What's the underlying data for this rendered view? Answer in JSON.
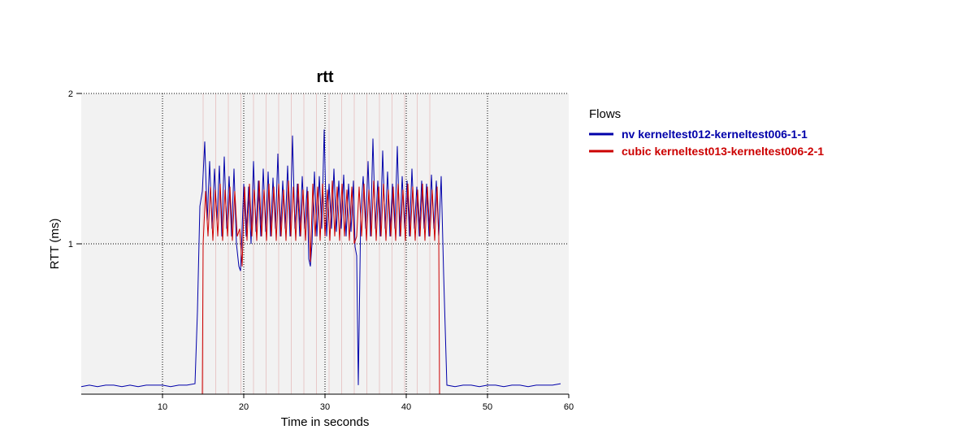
{
  "chart_data": {
    "type": "line",
    "title": "rtt",
    "xlabel": "Time in seconds",
    "ylabel": "RTT (ms)",
    "xlim": [
      0,
      60
    ],
    "ylim": [
      0,
      2
    ],
    "y_scale": "linear",
    "xticks": [
      10,
      20,
      30,
      40,
      50,
      60
    ],
    "yticks": [
      1,
      2
    ],
    "grid": true,
    "legend_title": "Flows",
    "legend_position": "right",
    "background_color": "#f2f2f2",
    "series": [
      {
        "name": "nv kerneltest012-kerneltest006-1-1",
        "color": "#0000aa",
        "x": [
          0.0,
          1.0,
          2.0,
          3.0,
          4.0,
          5.0,
          6.0,
          7.0,
          8.0,
          9.0,
          10.0,
          11.0,
          12.0,
          13.0,
          14.0,
          14.3,
          14.6,
          14.9,
          15.2,
          15.5,
          15.8,
          16.1,
          16.4,
          16.7,
          17.0,
          17.3,
          17.6,
          17.9,
          18.2,
          18.5,
          18.8,
          19.1,
          19.4,
          19.6,
          19.8,
          20.0,
          20.3,
          20.6,
          20.9,
          21.2,
          21.5,
          21.8,
          22.1,
          22.4,
          22.7,
          23.0,
          23.3,
          23.6,
          23.9,
          24.2,
          24.5,
          24.8,
          25.1,
          25.4,
          25.7,
          26.0,
          26.3,
          26.6,
          26.9,
          27.2,
          27.5,
          27.8,
          28.0,
          28.2,
          28.4,
          28.7,
          29.0,
          29.3,
          29.6,
          29.9,
          30.2,
          30.5,
          30.8,
          31.1,
          31.4,
          31.7,
          32.0,
          32.3,
          32.6,
          32.9,
          33.2,
          33.5,
          33.7,
          33.9,
          34.1,
          34.4,
          34.7,
          35.0,
          35.3,
          35.6,
          35.9,
          36.2,
          36.5,
          36.8,
          37.1,
          37.4,
          37.7,
          38.0,
          38.3,
          38.6,
          38.9,
          39.2,
          39.5,
          39.8,
          40.1,
          40.4,
          40.7,
          41.0,
          41.3,
          41.6,
          41.9,
          42.2,
          42.5,
          42.8,
          43.1,
          43.4,
          43.7,
          44.0,
          44.3,
          44.6,
          45.0,
          46.0,
          47.0,
          48.0,
          49.0,
          50.0,
          51.0,
          52.0,
          53.0,
          54.0,
          55.0,
          56.0,
          57.0,
          58.0,
          59.0
        ],
        "y": [
          0.05,
          0.06,
          0.05,
          0.06,
          0.06,
          0.05,
          0.06,
          0.05,
          0.06,
          0.06,
          0.06,
          0.05,
          0.06,
          0.06,
          0.07,
          0.55,
          1.25,
          1.35,
          1.68,
          1.15,
          1.55,
          1.1,
          1.5,
          1.15,
          1.52,
          1.05,
          1.58,
          1.1,
          1.45,
          1.05,
          1.5,
          1.0,
          0.85,
          0.82,
          1.1,
          1.4,
          1.05,
          1.38,
          1.0,
          1.55,
          1.08,
          1.42,
          1.05,
          1.5,
          1.08,
          1.48,
          1.05,
          1.44,
          1.1,
          1.6,
          1.05,
          1.42,
          1.1,
          1.52,
          1.05,
          1.72,
          1.1,
          1.4,
          1.05,
          1.45,
          1.1,
          1.38,
          0.9,
          0.85,
          1.0,
          1.48,
          1.05,
          1.45,
          1.1,
          1.76,
          1.05,
          1.4,
          1.1,
          1.5,
          1.08,
          1.42,
          1.1,
          1.46,
          1.05,
          1.4,
          1.08,
          1.42,
          0.98,
          0.92,
          0.06,
          1.2,
          1.45,
          1.1,
          1.55,
          1.05,
          1.7,
          1.1,
          1.42,
          1.05,
          1.62,
          1.1,
          1.48,
          1.05,
          1.4,
          1.1,
          1.65,
          1.05,
          1.45,
          1.1,
          1.42,
          1.05,
          1.5,
          1.1,
          1.38,
          1.05,
          1.42,
          1.1,
          1.4,
          1.05,
          1.46,
          1.1,
          1.42,
          1.05,
          1.45,
          0.8,
          0.06,
          0.05,
          0.06,
          0.06,
          0.05,
          0.06,
          0.06,
          0.05,
          0.06,
          0.06,
          0.05,
          0.06,
          0.06,
          0.06,
          0.07
        ]
      },
      {
        "name": "cubic kerneltest013-kerneltest006-2-1",
        "color": "#cc0000",
        "x": [
          0.0,
          14.9,
          15.0,
          15.3,
          15.6,
          15.9,
          16.2,
          16.5,
          16.8,
          17.1,
          17.4,
          17.7,
          18.0,
          18.3,
          18.6,
          18.9,
          19.2,
          19.5,
          19.8,
          20.1,
          20.4,
          20.7,
          21.0,
          21.3,
          21.6,
          21.9,
          22.2,
          22.5,
          22.8,
          23.1,
          23.4,
          23.7,
          24.0,
          24.3,
          24.6,
          24.9,
          25.2,
          25.5,
          25.8,
          26.1,
          26.4,
          26.7,
          27.0,
          27.3,
          27.6,
          27.9,
          28.2,
          28.5,
          28.8,
          29.1,
          29.4,
          29.7,
          30.0,
          30.3,
          30.6,
          30.9,
          31.2,
          31.5,
          31.8,
          32.1,
          32.4,
          32.7,
          33.0,
          33.3,
          33.6,
          33.9,
          34.2,
          34.5,
          34.8,
          35.1,
          35.4,
          35.7,
          36.0,
          36.3,
          36.6,
          36.9,
          37.2,
          37.5,
          37.8,
          38.1,
          38.4,
          38.7,
          39.0,
          39.3,
          39.6,
          39.9,
          40.2,
          40.5,
          40.8,
          41.1,
          41.4,
          41.7,
          42.0,
          42.3,
          42.6,
          42.9,
          43.2,
          43.5,
          43.8,
          44.0,
          44.1,
          60.0
        ],
        "y": [
          0.0,
          0.0,
          1.0,
          1.35,
          1.05,
          1.38,
          1.02,
          1.36,
          1.05,
          1.4,
          1.02,
          1.36,
          1.05,
          1.38,
          1.02,
          1.35,
          1.05,
          1.1,
          0.85,
          1.38,
          1.02,
          1.4,
          1.05,
          1.36,
          1.02,
          1.42,
          1.05,
          1.36,
          1.02,
          1.4,
          1.05,
          1.38,
          1.02,
          1.4,
          1.05,
          1.36,
          1.02,
          1.42,
          1.05,
          1.38,
          1.02,
          1.4,
          1.05,
          1.36,
          1.02,
          1.35,
          0.88,
          1.4,
          1.05,
          1.38,
          1.02,
          1.4,
          1.05,
          1.36,
          1.02,
          1.42,
          1.05,
          1.38,
          1.02,
          1.4,
          1.05,
          1.36,
          1.02,
          1.38,
          1.0,
          1.05,
          1.38,
          1.05,
          1.4,
          1.02,
          1.36,
          1.05,
          1.42,
          1.02,
          1.38,
          1.05,
          1.4,
          1.02,
          1.36,
          1.05,
          1.38,
          1.02,
          1.4,
          1.05,
          1.36,
          1.02,
          1.4,
          1.05,
          1.38,
          1.02,
          1.36,
          1.05,
          1.4,
          1.02,
          1.38,
          1.05,
          1.36,
          1.02,
          1.38,
          1.05,
          0.0,
          0.0
        ]
      }
    ]
  }
}
